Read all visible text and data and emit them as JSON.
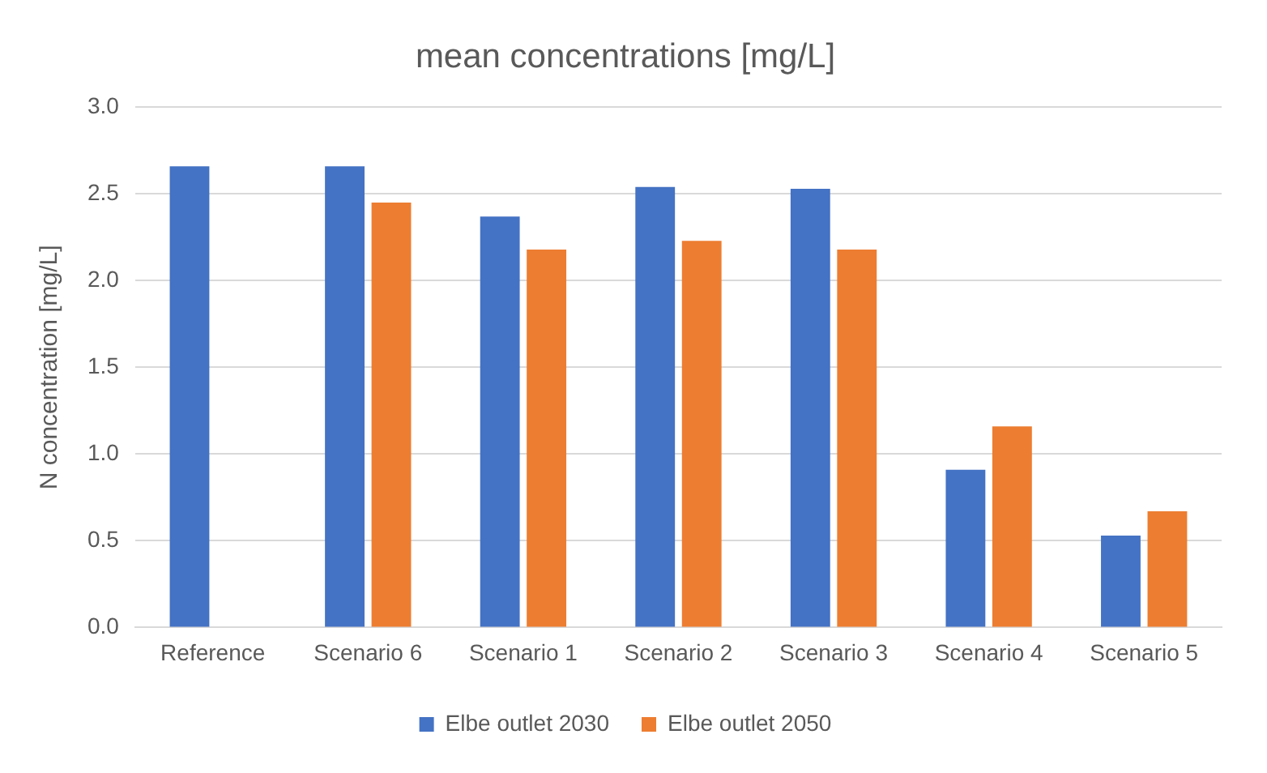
{
  "chart_data": {
    "type": "bar",
    "title": "mean concentrations [mg/L]",
    "ylabel": "N concentration [mg/L]",
    "categories": [
      "Reference",
      "Scenario 6",
      "Scenario 1",
      "Scenario 2",
      "Scenario 3",
      "Scenario 4",
      "Scenario 5"
    ],
    "series": [
      {
        "name": "Elbe outlet 2030",
        "color": "#4472c4",
        "values": [
          2.66,
          2.66,
          2.37,
          2.54,
          2.53,
          0.91,
          0.53
        ]
      },
      {
        "name": "Elbe outlet 2050",
        "color": "#ed7d31",
        "values": [
          null,
          2.45,
          2.18,
          2.23,
          2.18,
          1.16,
          0.67
        ]
      }
    ],
    "ylim": [
      0,
      3
    ],
    "yticks": [
      {
        "value": 0,
        "label": "0.0"
      },
      {
        "value": 0.5,
        "label": "0.5"
      },
      {
        "value": 1,
        "label": "1.0"
      },
      {
        "value": 1.5,
        "label": "1.5"
      },
      {
        "value": 2,
        "label": "2.0"
      },
      {
        "value": 2.5,
        "label": "2.5"
      },
      {
        "value": 3,
        "label": "3.0"
      }
    ],
    "grid": "y",
    "legend": "bottom"
  }
}
